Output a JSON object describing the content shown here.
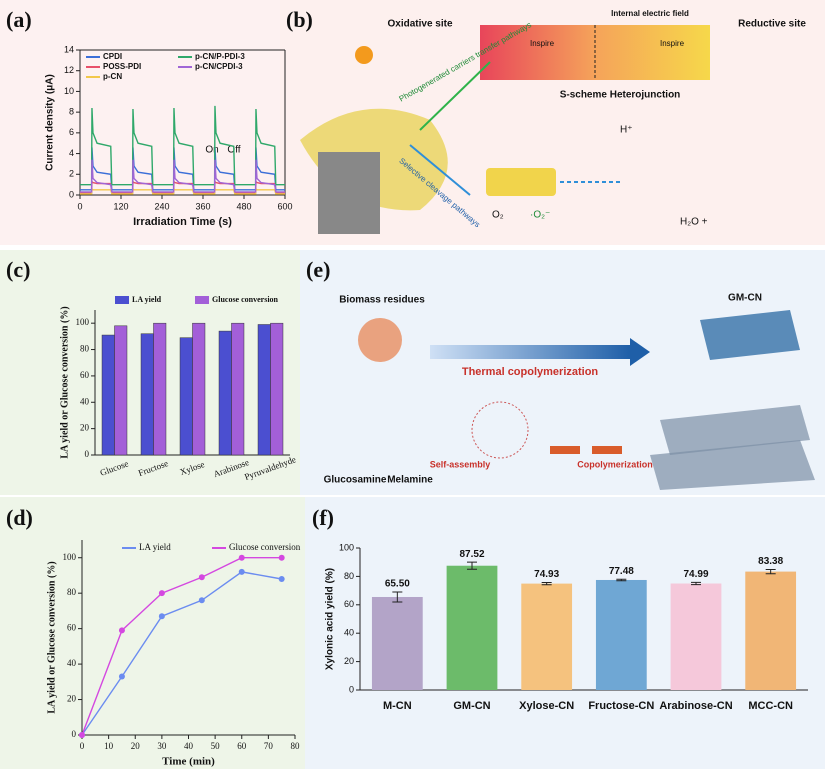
{
  "panel_labels": [
    "(a)",
    "(b)",
    "(c)",
    "(d)",
    "(e)",
    "(f)"
  ],
  "chart_data": [
    {
      "type": "line",
      "xlabel": "Irradiation Time (s)",
      "ylabel": "Current density (μA)",
      "annotations": [
        "On",
        "Off"
      ],
      "x": [
        0,
        34,
        35,
        38,
        50,
        90,
        93,
        154,
        155,
        158,
        170,
        210,
        213,
        274,
        275,
        278,
        290,
        330,
        333,
        394,
        395,
        398,
        410,
        450,
        453,
        514,
        515,
        518,
        530,
        570,
        573,
        600
      ],
      "series": [
        {
          "name": "CPDI",
          "color": "#3b6fd8",
          "values": [
            0.5,
            0.5,
            4.6,
            2.8,
            2.2,
            2.0,
            0.5,
            0.5,
            4.6,
            2.8,
            2.2,
            2.0,
            0.5,
            0.5,
            4.6,
            2.8,
            2.2,
            2.0,
            0.5,
            0.5,
            4.6,
            2.8,
            2.2,
            2.0,
            0.5,
            0.5,
            4.6,
            2.8,
            2.2,
            2.0,
            0.5,
            0.5
          ]
        },
        {
          "name": "POSS-PDI",
          "color": "#e8506a",
          "values": [
            0.2,
            0.2,
            1.3,
            1.2,
            1.1,
            1.1,
            0.2,
            0.2,
            1.3,
            1.2,
            1.1,
            1.1,
            0.2,
            0.2,
            1.3,
            1.2,
            1.1,
            1.1,
            0.2,
            0.2,
            1.3,
            1.2,
            1.1,
            1.1,
            0.2,
            0.2,
            1.3,
            1.2,
            1.1,
            1.1,
            0.2,
            0.2
          ]
        },
        {
          "name": "p-CN",
          "color": "#f2c84b",
          "values": [
            0.1,
            0.1,
            0.6,
            0.5,
            0.5,
            0.5,
            0.1,
            0.1,
            0.6,
            0.5,
            0.5,
            0.5,
            0.1,
            0.1,
            0.6,
            0.5,
            0.5,
            0.5,
            0.1,
            0.1,
            0.6,
            0.5,
            0.5,
            0.5,
            0.1,
            0.1,
            0.6,
            0.5,
            0.5,
            0.5,
            0.1,
            0.1
          ]
        },
        {
          "name": "p-CN/P-PDI-3",
          "color": "#2fa86a",
          "values": [
            1.0,
            1.0,
            8.4,
            6.0,
            5.0,
            4.7,
            1.0,
            1.0,
            8.3,
            6.0,
            5.0,
            4.7,
            1.0,
            1.0,
            8.4,
            6.0,
            5.0,
            4.7,
            1.0,
            1.0,
            8.6,
            6.0,
            5.0,
            4.7,
            1.0,
            1.0,
            8.3,
            6.0,
            5.0,
            4.7,
            1.0,
            1.0
          ]
        },
        {
          "name": "p-CN/CPDI-3",
          "color": "#a066d6",
          "values": [
            0.3,
            0.3,
            3.4,
            1.6,
            1.2,
            1.0,
            0.3,
            0.3,
            3.4,
            1.6,
            1.2,
            1.0,
            0.3,
            0.3,
            3.4,
            1.6,
            1.2,
            1.0,
            0.3,
            0.3,
            3.4,
            1.6,
            1.2,
            1.0,
            0.3,
            0.3,
            3.4,
            1.6,
            1.2,
            1.0,
            0.3,
            0.3
          ]
        }
      ],
      "xlim": [
        0,
        600
      ],
      "xticks": [
        0,
        120,
        240,
        360,
        480,
        600
      ],
      "ylim": [
        0,
        14
      ],
      "yticks": [
        0,
        2,
        4,
        6,
        8,
        10,
        12,
        14
      ]
    },
    {
      "type": "bar",
      "ylabel": "LA yield or Glucose conversion (%)",
      "categories": [
        "Glucose",
        "Fructose",
        "Xylose",
        "Arabinose",
        "Pyruvaldehyde"
      ],
      "series": [
        {
          "name": "LA yield",
          "color": "#4b4fd0",
          "values": [
            91,
            92,
            89,
            94,
            99
          ]
        },
        {
          "name": "Glucose conversion",
          "color": "#a35fd8",
          "values": [
            98,
            100,
            100,
            100,
            100
          ]
        }
      ],
      "ylim": [
        0,
        110
      ],
      "yticks": [
        0,
        20,
        40,
        60,
        80,
        100
      ]
    },
    {
      "type": "line",
      "xlabel": "Time (min)",
      "ylabel": "LA yield or Glucose conversion (%)",
      "markers": true,
      "x": [
        0,
        15,
        30,
        45,
        60,
        75
      ],
      "series": [
        {
          "name": "LA yield",
          "color": "#6b8cf0",
          "values": [
            0,
            33,
            67,
            76,
            92,
            88
          ]
        },
        {
          "name": "Glucose conversion",
          "color": "#d448e0",
          "values": [
            0,
            59,
            80,
            89,
            100,
            100
          ]
        }
      ],
      "xlim": [
        0,
        80
      ],
      "xticks": [
        0,
        10,
        20,
        30,
        40,
        50,
        60,
        70,
        80
      ],
      "ylim": [
        0,
        110
      ],
      "yticks": [
        0,
        20,
        40,
        60,
        80,
        100
      ]
    },
    {
      "type": "bar",
      "ylabel": "Xylonic acid yield (%)",
      "categories": [
        "M-CN",
        "GM-CN",
        "Xylose-CN",
        "Fructose-CN",
        "Arabinose-CN",
        "MCC-CN"
      ],
      "values": [
        65.5,
        87.52,
        74.93,
        77.48,
        74.99,
        83.38
      ],
      "value_labels": [
        "65.50",
        "87.52",
        "74.93",
        "77.48",
        "74.99",
        "83.38"
      ],
      "errors": [
        3.5,
        2.5,
        0.8,
        0.5,
        0.8,
        1.5
      ],
      "colors": [
        "#b3a4c8",
        "#6cbb6a",
        "#f5c27e",
        "#6fa7d4",
        "#f5c8da",
        "#f1b676"
      ],
      "ylim": [
        0,
        100
      ],
      "yticks": [
        0,
        20,
        40,
        60,
        80,
        100
      ]
    }
  ],
  "diagram_b": {
    "oxidative": "Oxidative site",
    "reductive": "Reductive site",
    "field": "Internal electric field",
    "scheme": "S-scheme Heterojunction",
    "inspire": "Inspire",
    "photo": "Photogenerated carriers transfer pathways",
    "cleavage": "Selective cleavage pathways",
    "o2": "O₂",
    "o2r": "·O₂⁻",
    "h": "H⁺",
    "water": "H₂O +"
  },
  "diagram_e": {
    "biomass": "Biomass residues",
    "thermal": "Thermal copolymerization",
    "gmcn": "GM-CN",
    "glucosamine": "Glucosamine",
    "melamine": "Melamine",
    "self": "Self-assembly",
    "copoly": "Copolymerization"
  }
}
